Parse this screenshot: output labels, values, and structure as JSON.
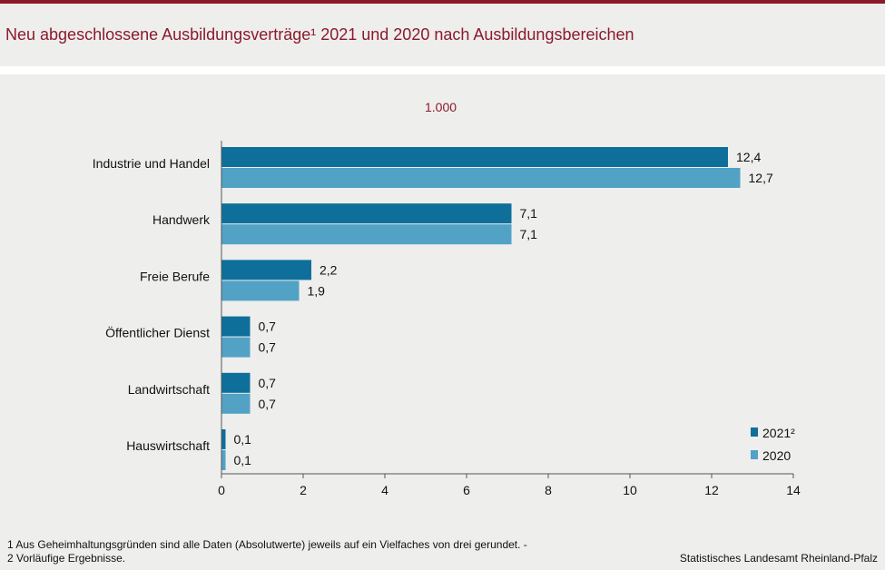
{
  "page": {
    "title": "Neu abgeschlossene Ausbildungsverträge¹ 2021 und 2020 nach Ausbildungsbereichen",
    "unit": "1.000",
    "footnote": "1 Aus Geheimhaltungsgründen sind alle Daten (Absolutwerte) jeweils auf ein Vielfaches von drei gerundet. - 2 Vorläufige Ergebnisse.",
    "source": "Statistisches Landesamt Rheinland-Pfalz"
  },
  "colors": {
    "series_2021": "#0e6f9a",
    "series_2020": "#52a2c6",
    "accent": "#8b1a2b"
  },
  "chart_data": {
    "type": "bar",
    "orientation": "horizontal",
    "title": "Neu abgeschlossene Ausbildungsverträge¹ 2021 und 2020 nach Ausbildungsbereichen",
    "unit": "1.000",
    "categories": [
      "Industrie und Handel",
      "Handwerk",
      "Freie Berufe",
      "Öffentlicher Dienst",
      "Landwirtschaft",
      "Hauswirtschaft"
    ],
    "series": [
      {
        "name": "2021²",
        "values": [
          12.4,
          7.1,
          2.2,
          0.7,
          0.7,
          0.1
        ],
        "labels": [
          "12,4",
          "7,1",
          "2,2",
          "0,7",
          "0,7",
          "0,1"
        ]
      },
      {
        "name": "2020",
        "values": [
          12.7,
          7.1,
          1.9,
          0.7,
          0.7,
          0.1
        ],
        "labels": [
          "12,7",
          "7,1",
          "1,9",
          "0,7",
          "0,7",
          "0,1"
        ]
      }
    ],
    "xlim": [
      0,
      14
    ],
    "xticks": [
      0,
      2,
      4,
      6,
      8,
      10,
      12,
      14
    ],
    "legend_position": "bottom-right",
    "grid": false
  }
}
